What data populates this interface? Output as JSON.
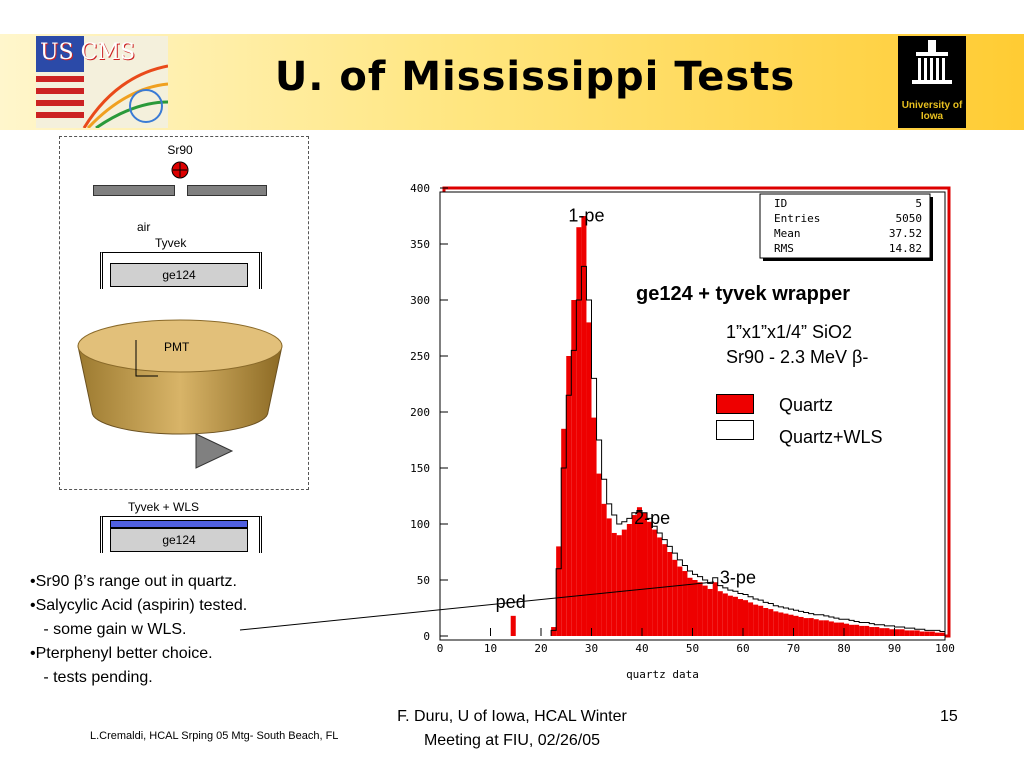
{
  "slide": {
    "title": "U. of Mississippi Tests",
    "logo_left": "US CMS",
    "logo_right": "University of Iowa"
  },
  "setup": {
    "source": "Sr90",
    "air": "air",
    "tyvek": "Tyvek",
    "ge124_top": "ge124",
    "pmt": "PMT",
    "tyvek_wls": "Tyvek + WLS",
    "ge124_bottom": "ge124"
  },
  "notes": [
    "•Sr90 β’s range out in quartz.",
    "•Salycylic Acid (aspirin) tested.",
    "   - some gain w WLS.",
    "•Pterphenyl better choice.",
    "   - tests pending."
  ],
  "footer": {
    "left": "L.Cremaldi, HCAL Srping 05 Mtg- South Beach, FL",
    "center_line1": "F. Duru, U of Iowa, HCAL Winter",
    "center_line2": "Meeting at FIU, 02/26/05",
    "page": "15"
  },
  "chart_data": {
    "type": "bar",
    "xlabel": "quartz data",
    "ylabel": "",
    "xlim": [
      0,
      100
    ],
    "ylim": [
      0,
      400
    ],
    "x_ticks": [
      0,
      10,
      20,
      30,
      40,
      50,
      60,
      70,
      80,
      90,
      100
    ],
    "y_ticks": [
      0,
      50,
      100,
      150,
      200,
      250,
      300,
      350,
      400
    ],
    "colors": {
      "quartz": "#ee0000",
      "wls": "#ffffff",
      "frame": "#dd0000"
    },
    "stats": [
      {
        "key": "ID",
        "value": "5"
      },
      {
        "key": "Entries",
        "value": "5050"
      },
      {
        "key": "Mean",
        "value": "37.52"
      },
      {
        "key": "RMS",
        "value": "14.82"
      }
    ],
    "heading": "ge124 + tyvek wrapper",
    "info_line1": "1”x1”x1/4” SiO2",
    "info_line2": "Sr90 - 2.3 MeV β-",
    "annotations": [
      {
        "text": "1-pe",
        "x": 29,
        "y": 370
      },
      {
        "text": "2-pe",
        "x": 42,
        "y": 100
      },
      {
        "text": "3-pe",
        "x": 59,
        "y": 47
      },
      {
        "text": "ped",
        "x": 14,
        "y": 25
      }
    ],
    "series": [
      {
        "name": "Quartz",
        "x": [
          14,
          22,
          23,
          24,
          25,
          26,
          27,
          28,
          29,
          30,
          31,
          32,
          33,
          34,
          35,
          36,
          37,
          38,
          39,
          40,
          41,
          42,
          43,
          44,
          45,
          46,
          47,
          48,
          49,
          50,
          51,
          52,
          53,
          54,
          55,
          56,
          57,
          58,
          59,
          60,
          61,
          62,
          63,
          64,
          65,
          66,
          67,
          68,
          69,
          70,
          71,
          72,
          73,
          74,
          75,
          76,
          77,
          78,
          79,
          80,
          81,
          82,
          83,
          84,
          85,
          86,
          87,
          88,
          89,
          90,
          91,
          92,
          93,
          94,
          95,
          96,
          97,
          98,
          99
        ],
        "values": [
          18,
          8,
          80,
          185,
          250,
          300,
          365,
          375,
          280,
          195,
          145,
          118,
          105,
          92,
          90,
          95,
          100,
          108,
          115,
          110,
          102,
          95,
          88,
          82,
          75,
          68,
          62,
          58,
          52,
          50,
          48,
          45,
          42,
          48,
          40,
          38,
          36,
          35,
          33,
          32,
          30,
          28,
          27,
          25,
          24,
          22,
          21,
          20,
          19,
          18,
          17,
          16,
          16,
          15,
          14,
          14,
          13,
          12,
          12,
          11,
          10,
          10,
          9,
          9,
          8,
          8,
          7,
          7,
          6,
          6,
          6,
          5,
          5,
          5,
          4,
          4,
          4,
          3,
          3
        ]
      },
      {
        "name": "Quartz+WLS",
        "x": [
          22,
          23,
          24,
          25,
          26,
          27,
          28,
          29,
          30,
          31,
          32,
          33,
          34,
          35,
          36,
          37,
          38,
          39,
          40,
          41,
          42,
          43,
          44,
          45,
          46,
          47,
          48,
          49,
          50,
          51,
          52,
          53,
          54,
          55,
          56,
          57,
          58,
          59,
          60,
          61,
          62,
          63,
          64,
          65,
          66,
          67,
          68,
          69,
          70,
          71,
          72,
          73,
          74,
          75,
          76,
          77,
          78,
          79,
          80,
          81,
          82,
          83,
          84,
          85,
          86,
          87,
          88,
          89,
          90,
          91,
          92,
          93,
          94,
          95,
          96,
          97,
          98,
          99
        ],
        "values": [
          5,
          60,
          150,
          215,
          255,
          300,
          330,
          300,
          230,
          175,
          140,
          118,
          108,
          100,
          102,
          105,
          110,
          112,
          110,
          105,
          98,
          92,
          86,
          80,
          74,
          68,
          63,
          58,
          55,
          53,
          50,
          47,
          52,
          45,
          43,
          41,
          40,
          38,
          37,
          35,
          33,
          32,
          30,
          29,
          27,
          26,
          25,
          24,
          23,
          22,
          21,
          20,
          19,
          19,
          18,
          17,
          16,
          15,
          15,
          14,
          13,
          12,
          12,
          11,
          10,
          10,
          9,
          9,
          8,
          8,
          7,
          7,
          6,
          6,
          5,
          5,
          5,
          4
        ]
      }
    ]
  }
}
